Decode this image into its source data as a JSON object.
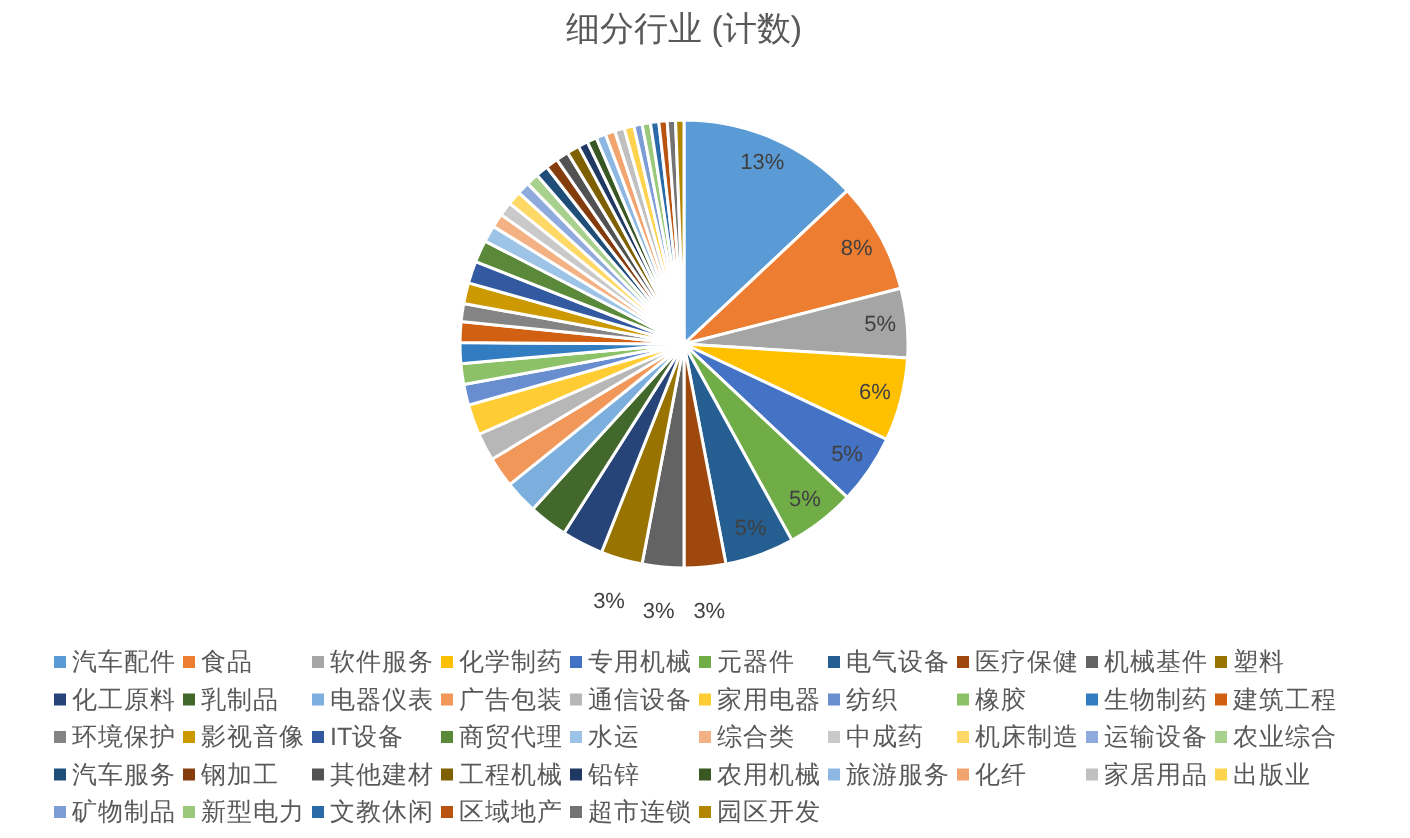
{
  "chart_data": {
    "type": "pie",
    "title": "细分行业 (计数)",
    "categories": [
      "汽车配件",
      "食品",
      "软件服务",
      "化学制药",
      "专用机械",
      "元器件",
      "电气设备",
      "医疗保健",
      "机械基件",
      "塑料",
      "化工原料",
      "乳制品",
      "电器仪表",
      "广告包装",
      "通信设备",
      "家用电器",
      "纺织",
      "橡胶",
      "生物制药",
      "建筑工程",
      "环境保护",
      "影视音像",
      "IT设备",
      "商贸代理",
      "水运",
      "综合类",
      "中成药",
      "机床制造",
      "运输设备",
      "农业综合",
      "汽车服务",
      "钢加工",
      "其他建材",
      "工程机械",
      "铅锌",
      "农用机械",
      "旅游服务",
      "化纤",
      "家居用品",
      "出版业",
      "矿物制品",
      "新型电力",
      "文教休闲",
      "区域地产",
      "超市连锁",
      "园区开发"
    ],
    "values": [
      13,
      8,
      5,
      6,
      5,
      5,
      5,
      3,
      3,
      3,
      3.0,
      2.8,
      2.4,
      2.2,
      2.0,
      2.2,
      1.5,
      1.5,
      1.5,
      1.5,
      1.3,
      1.5,
      1.6,
      1.6,
      1.2,
      1.0,
      1.0,
      1.0,
      0.9,
      0.9,
      0.9,
      0.9,
      0.9,
      0.9,
      0.7,
      0.7,
      0.7,
      0.7,
      0.7,
      0.7,
      0.6,
      0.6,
      0.6,
      0.6,
      0.6,
      0.6
    ],
    "colors": [
      "#5b9bd5",
      "#ed7d31",
      "#a5a5a5",
      "#ffc000",
      "#4472c4",
      "#70ad47",
      "#255e91",
      "#9e480e",
      "#636363",
      "#997300",
      "#264478",
      "#43682b",
      "#7cafdd",
      "#f1975a",
      "#b7b7b7",
      "#ffcd33",
      "#698ed0",
      "#8cc168",
      "#327dc2",
      "#d26012",
      "#848484",
      "#cc9a00",
      "#335aa1",
      "#5a8a39",
      "#9dc3e6",
      "#f4b183",
      "#c9c9c9",
      "#ffd966",
      "#8faadc",
      "#a9d18e",
      "#1f4e79",
      "#843c0c",
      "#525252",
      "#7f6000",
      "#203864",
      "#385723",
      "#8cb7e2",
      "#f2a46f",
      "#c0c0c0",
      "#ffd34d",
      "#7c9cd6",
      "#9ac97b",
      "#2b6aa9",
      "#b85410",
      "#737373",
      "#b38600"
    ],
    "value_labels": [
      "13%",
      "8%",
      "5%",
      "6%",
      "5%",
      "5%",
      "5%",
      "3%",
      "3%",
      "3%",
      null,
      null,
      null,
      null,
      null,
      null,
      null,
      null,
      null,
      null,
      null,
      null,
      null,
      null,
      null,
      null,
      null,
      null,
      null,
      null,
      null,
      null,
      null,
      null,
      null,
      null,
      null,
      null,
      null,
      null,
      null,
      null,
      null,
      null,
      null,
      null
    ],
    "legend": "bottom"
  }
}
